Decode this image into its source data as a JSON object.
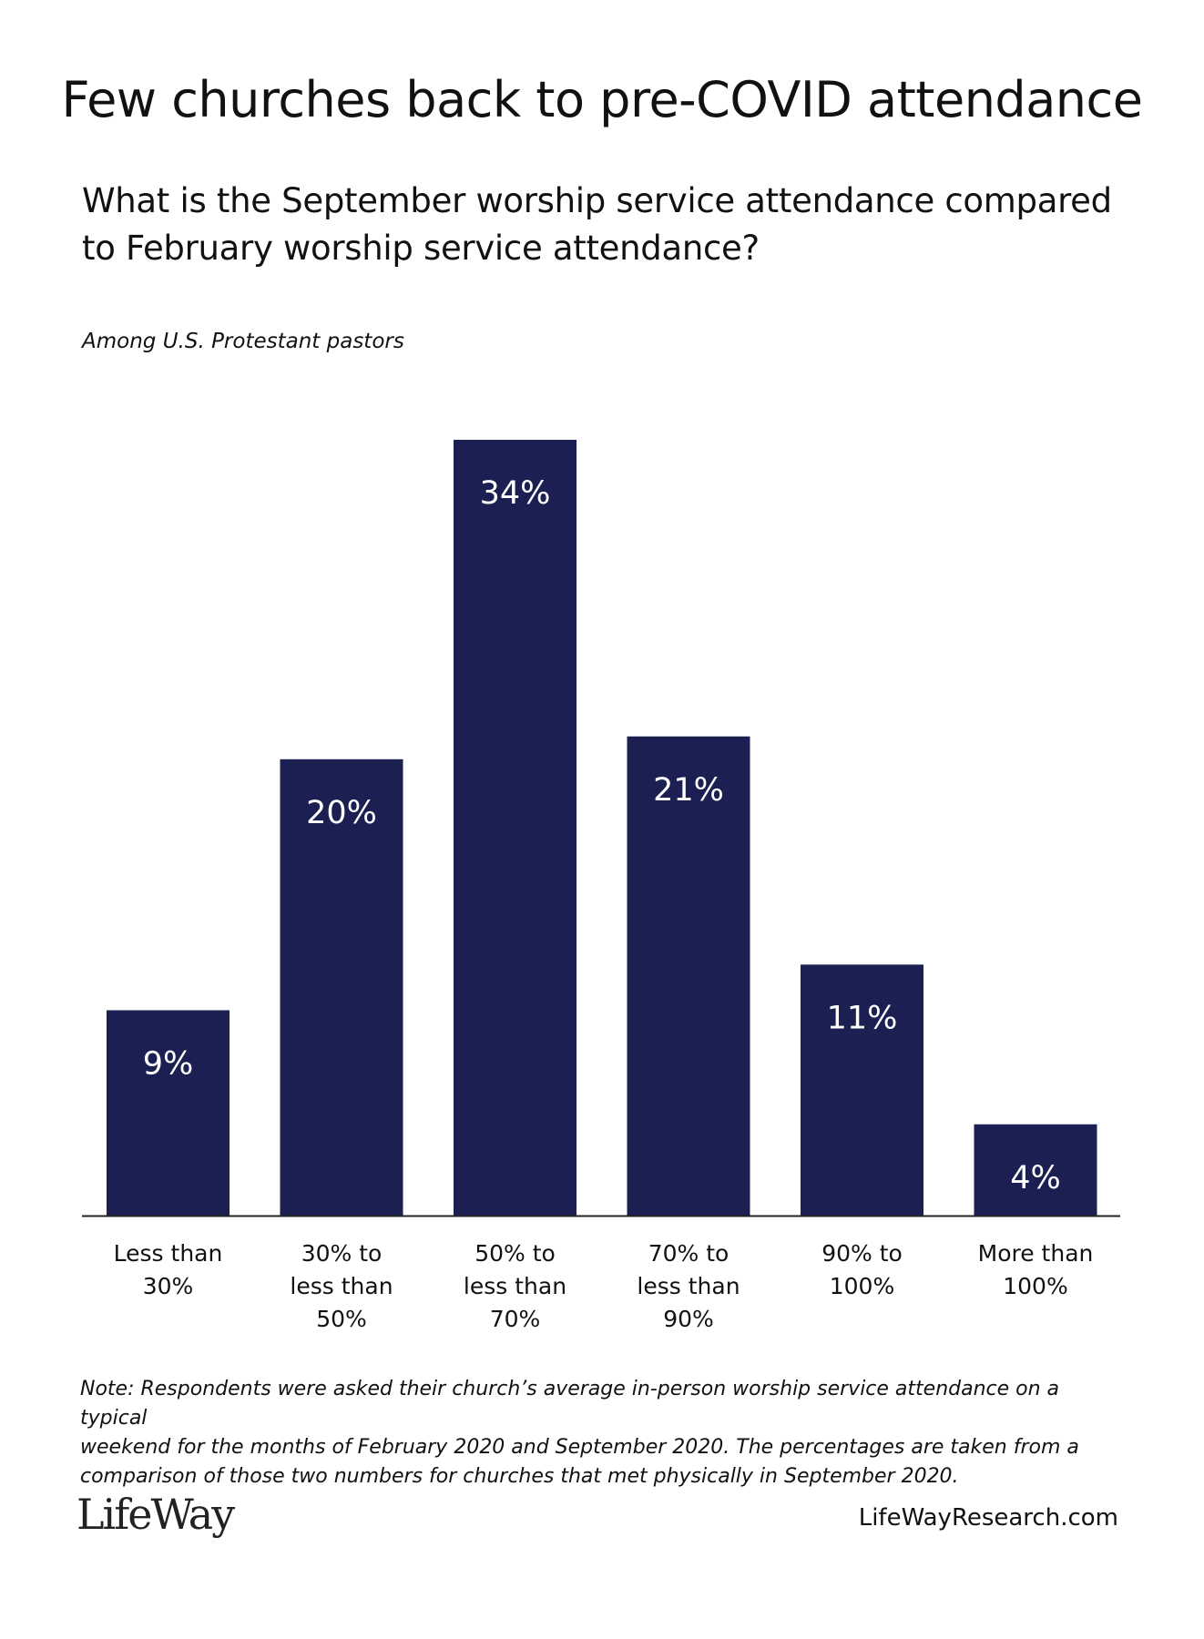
{
  "header": {
    "title": "Few churches back to pre-COVID attendance",
    "question_line1": "What is the September worship service attendance compared",
    "question_line2": "to February worship service attendance?",
    "base": "Among U.S. Protestant pastors"
  },
  "chart_data": {
    "type": "bar",
    "categories": [
      [
        "Less than",
        "30%"
      ],
      [
        "30% to",
        "less than",
        "50%"
      ],
      [
        "50% to",
        "less than",
        "70%"
      ],
      [
        "70% to",
        "less than",
        "90%"
      ],
      [
        "90% to",
        "100%"
      ],
      [
        "More than",
        "100%"
      ]
    ],
    "values": [
      9,
      20,
      34,
      21,
      11,
      4
    ],
    "value_labels": [
      "9%",
      "20%",
      "34%",
      "21%",
      "11%",
      "4%"
    ],
    "unit": "%",
    "ylim": [
      0,
      34
    ],
    "grid": false,
    "legend": "none",
    "bar_color": "#1c1f52",
    "label_color": "#ffffff"
  },
  "footer": {
    "note_line1": "Note: Respondents were asked their church’s average in-person worship service attendance on a typical",
    "note_line2": "weekend for the months of February 2020 and September 2020. The percentages are taken from a",
    "note_line3": "comparison of those two numbers for churches that met physically in September 2020.",
    "logo": "LifeWay",
    "website": "LifeWayResearch.com"
  }
}
